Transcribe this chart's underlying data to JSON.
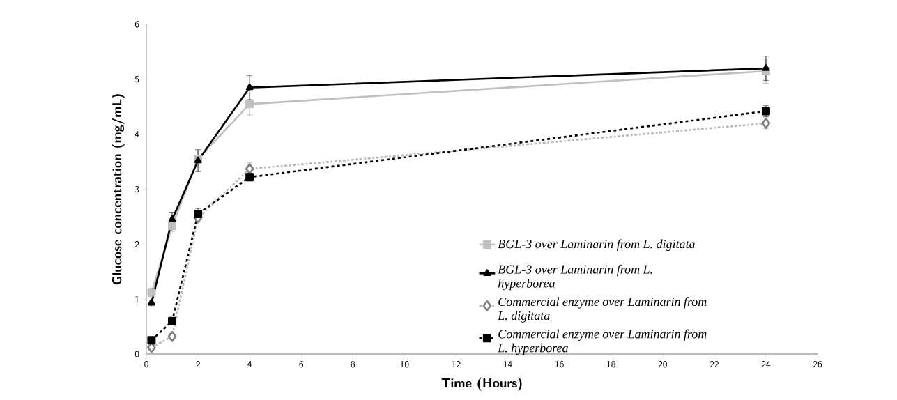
{
  "chart_data": {
    "type": "line",
    "xlabel": "Time (Hours)",
    "ylabel": "Glucose concentration (mg/mL)",
    "x": [
      0.2,
      1,
      2,
      4,
      24
    ],
    "xlim": [
      0,
      26
    ],
    "xticks": [
      0,
      2,
      4,
      6,
      8,
      10,
      12,
      14,
      16,
      18,
      20,
      22,
      24,
      26
    ],
    "ylim": [
      0,
      6
    ],
    "yticks": [
      0,
      1,
      2,
      3,
      4,
      5,
      6
    ],
    "grid": false,
    "legend": "bottom right",
    "series": [
      {
        "name": "BGL-3 over Laminarin from L. digitata",
        "color": "#c0c0c0",
        "marker": "square",
        "line_style": "solid",
        "values": [
          1.12,
          2.33,
          3.55,
          4.55,
          5.15
        ],
        "errors": [
          0.08,
          0.1,
          0.15,
          0.2,
          0.22
        ]
      },
      {
        "name": "BGL-3 over Laminarin from L. hyperborea",
        "color": "#000000",
        "marker": "triangle",
        "line_style": "solid",
        "values": [
          0.93,
          2.45,
          3.52,
          4.85,
          5.2
        ],
        "errors": [
          0.05,
          0.13,
          0.2,
          0.22,
          0.22
        ]
      },
      {
        "name": "Commercial enzyme over Laminarin from L. digitata",
        "color": "#b8b8b8",
        "marker": "diamond",
        "line_style": "dashdot",
        "values": [
          0.12,
          0.32,
          2.48,
          3.37,
          4.2
        ],
        "errors": [
          0.05,
          0.05,
          0.08,
          0.11,
          0.1
        ]
      },
      {
        "name": "Commercial enzyme over Laminarin from L. hyperborea",
        "color": "#000000",
        "marker": "square",
        "line_style": "dashed",
        "values": [
          0.25,
          0.6,
          2.55,
          3.22,
          4.42
        ],
        "errors": [
          0.05,
          0.05,
          0.1,
          0.07,
          0.1
        ]
      }
    ]
  }
}
